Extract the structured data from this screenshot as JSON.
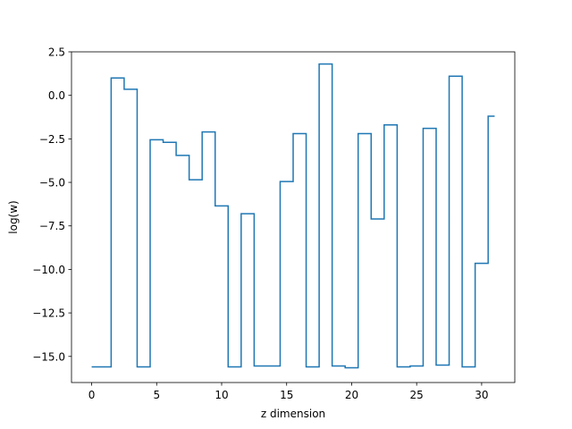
{
  "chart_data": {
    "type": "line",
    "drawstyle": "steps-mid",
    "title": "",
    "xlabel": "z dimension",
    "ylabel": "log(w)",
    "xlim": [
      -1.55,
      32.55
    ],
    "ylim": [
      -16.5,
      2.5
    ],
    "xticks": [
      0,
      5,
      10,
      15,
      20,
      25,
      30
    ],
    "xtick_labels": [
      "0",
      "5",
      "10",
      "15",
      "20",
      "25",
      "30"
    ],
    "yticks": [
      2.5,
      0.0,
      -2.5,
      -5.0,
      -7.5,
      -10.0,
      -12.5,
      -15.0
    ],
    "ytick_labels": [
      "2.5",
      "0.0",
      "−2.5",
      "−5.0",
      "−7.5",
      "−10.0",
      "−12.5",
      "−15.0"
    ],
    "grid": false,
    "series": [
      {
        "color": "#1f77b4",
        "x": [
          0,
          1,
          2,
          3,
          4,
          5,
          6,
          7,
          8,
          9,
          10,
          11,
          12,
          13,
          14,
          15,
          16,
          17,
          18,
          19,
          20,
          21,
          22,
          23,
          24,
          25,
          26,
          27,
          28,
          29,
          30,
          31
        ],
        "y": [
          -15.6,
          -15.6,
          1.0,
          0.35,
          -15.6,
          -2.55,
          -2.7,
          -3.45,
          -4.85,
          -2.1,
          -6.35,
          -15.6,
          -6.8,
          -15.55,
          -15.55,
          -4.95,
          -2.2,
          -15.6,
          1.8,
          -15.55,
          -15.65,
          -2.2,
          -7.1,
          -1.7,
          -15.6,
          -15.55,
          -1.9,
          -15.5,
          1.1,
          -15.6,
          -9.65,
          -1.2
        ]
      }
    ]
  }
}
